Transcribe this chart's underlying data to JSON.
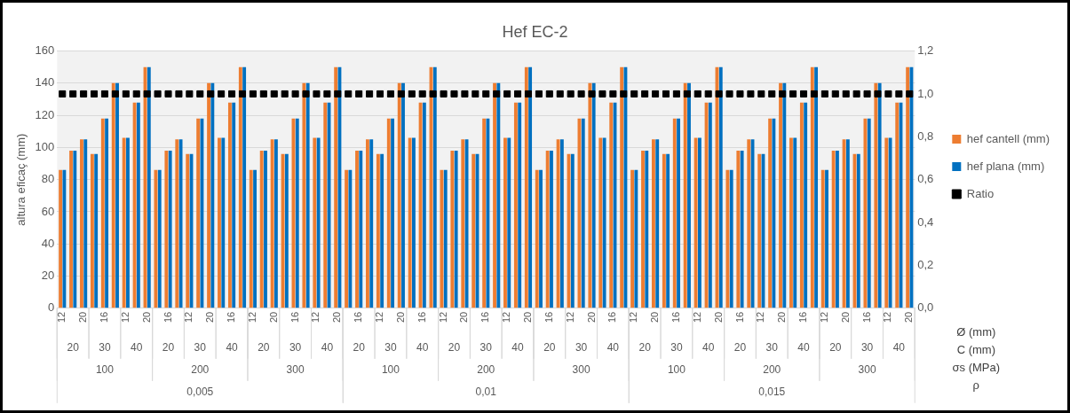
{
  "chart_data": {
    "type": "bar",
    "title": "Hef EC-2",
    "ylabel": "altura eficaç (mm)",
    "categories": [
      "12",
      null,
      "20",
      null,
      "16",
      null,
      "12",
      null,
      "20",
      null,
      "16",
      null,
      "12",
      null,
      "20",
      null,
      "16",
      null,
      "12",
      null,
      "20",
      null,
      "16",
      null,
      "12",
      null,
      "20",
      null,
      "16",
      null,
      "12",
      null,
      "20",
      null,
      "16",
      null,
      "12",
      null,
      "20",
      null,
      "16",
      null,
      "12",
      null,
      "20",
      null,
      "16",
      null,
      "12",
      null,
      "20",
      null,
      "16",
      null,
      "12",
      null,
      "20",
      null,
      "16",
      null,
      "12",
      null,
      "20",
      null,
      "16",
      null,
      "12",
      null,
      "20",
      null,
      "16",
      null,
      "12",
      null,
      "20",
      null,
      "16",
      null,
      "12",
      null,
      "20"
    ],
    "series": [
      {
        "name": "hef cantell (mm)",
        "color": "#ed7d31",
        "values": [
          86,
          98,
          105,
          96,
          118,
          140,
          106,
          128,
          150,
          86,
          98,
          105,
          96,
          118,
          140,
          106,
          128,
          150,
          86,
          98,
          105,
          96,
          118,
          140,
          106,
          128,
          150,
          86,
          98,
          105,
          96,
          118,
          140,
          106,
          128,
          150,
          86,
          98,
          105,
          96,
          118,
          140,
          106,
          128,
          150,
          86,
          98,
          105,
          96,
          118,
          140,
          106,
          128,
          150,
          86,
          98,
          105,
          96,
          118,
          140,
          106,
          128,
          150,
          86,
          98,
          105,
          96,
          118,
          140,
          106,
          128,
          150,
          86,
          98,
          105,
          96,
          118,
          140,
          106,
          128,
          150
        ]
      },
      {
        "name": "hef plana (mm)",
        "color": "#0070c0",
        "values": [
          86,
          98,
          105,
          96,
          118,
          140,
          106,
          128,
          150,
          86,
          98,
          105,
          96,
          118,
          140,
          106,
          128,
          150,
          86,
          98,
          105,
          96,
          118,
          140,
          106,
          128,
          150,
          86,
          98,
          105,
          96,
          118,
          140,
          106,
          128,
          150,
          86,
          98,
          105,
          96,
          118,
          140,
          106,
          128,
          150,
          86,
          98,
          105,
          96,
          118,
          140,
          106,
          128,
          150,
          86,
          98,
          105,
          96,
          118,
          140,
          106,
          128,
          150,
          86,
          98,
          105,
          96,
          118,
          140,
          106,
          128,
          150,
          86,
          98,
          105,
          96,
          118,
          140,
          106,
          128,
          150
        ]
      },
      {
        "name": "Ratio",
        "type": "scatter",
        "axis": "y2",
        "marker": "square",
        "color": "#000000",
        "values": [
          1,
          1,
          1,
          1,
          1,
          1,
          1,
          1,
          1,
          1,
          1,
          1,
          1,
          1,
          1,
          1,
          1,
          1,
          1,
          1,
          1,
          1,
          1,
          1,
          1,
          1,
          1,
          1,
          1,
          1,
          1,
          1,
          1,
          1,
          1,
          1,
          1,
          1,
          1,
          1,
          1,
          1,
          1,
          1,
          1,
          1,
          1,
          1,
          1,
          1,
          1,
          1,
          1,
          1,
          1,
          1,
          1,
          1,
          1,
          1,
          1,
          1,
          1,
          1,
          1,
          1,
          1,
          1,
          1,
          1,
          1,
          1,
          1,
          1,
          1,
          1,
          1,
          1,
          1,
          1,
          1
        ]
      }
    ],
    "ylim": [
      0,
      160
    ],
    "yticks": [
      0,
      20,
      40,
      60,
      80,
      100,
      120,
      140,
      160
    ],
    "y2lim": [
      0,
      1.2
    ],
    "y2ticks": [
      {
        "value": 0,
        "label": "0,0"
      },
      {
        "value": 0.2,
        "label": "0,2"
      },
      {
        "value": 0.4,
        "label": "0,4"
      },
      {
        "value": 0.6,
        "label": "0,6"
      },
      {
        "value": 0.8,
        "label": "0,8"
      },
      {
        "value": 1,
        "label": "1,0"
      },
      {
        "value": 1.2,
        "label": "1,2"
      }
    ],
    "grid": "y",
    "legend": "right",
    "annotations": [
      "20",
      "30",
      "40",
      "20",
      "30",
      "40",
      "20",
      "30",
      "40",
      "20",
      "30",
      "40",
      "20",
      "30",
      "40",
      "20",
      "30",
      "40",
      "20",
      "30",
      "40",
      "20",
      "30",
      "40",
      "20",
      "30",
      "40",
      "100",
      "200",
      "300",
      "100",
      "200",
      "300",
      "100",
      "200",
      "300",
      "0,005",
      "0,01",
      "0,015",
      "Ø (mm)",
      "C (mm)",
      "σs (MPa)",
      "ρ"
    ]
  }
}
